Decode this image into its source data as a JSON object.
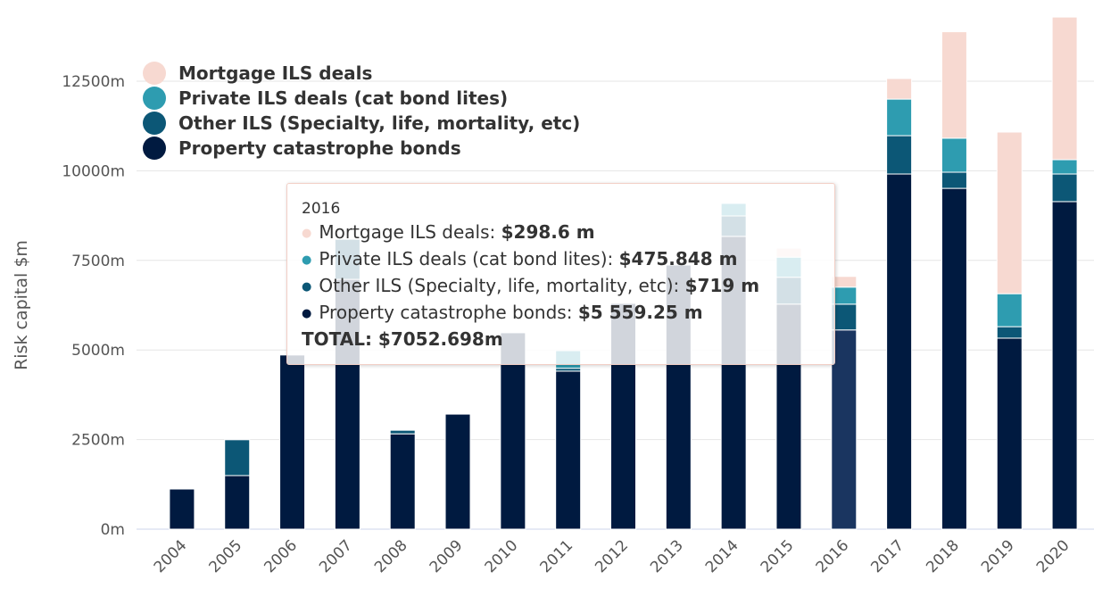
{
  "chart_data": {
    "type": "bar",
    "stacked": true,
    "ylabel": "Risk capital $m",
    "xlabel": "",
    "ylim": [
      0,
      14500
    ],
    "yticks": [
      "0m",
      "2500m",
      "5000m",
      "7500m",
      "10000m",
      "12500m"
    ],
    "ytick_values": [
      0,
      2500,
      5000,
      7500,
      10000,
      12500
    ],
    "grid": true,
    "legend_placement": "top-left",
    "categories": [
      "2004",
      "2005",
      "2006",
      "2007",
      "2008",
      "2009",
      "2010",
      "2011",
      "2012",
      "2013",
      "2014",
      "2015",
      "2016",
      "2017",
      "2018",
      "2019",
      "2020"
    ],
    "series": [
      {
        "name": "Property catastrophe bonds",
        "color": "#001a40",
        "values": [
          1120,
          1495,
          4860,
          6970,
          2660,
          3210,
          5480,
          4410,
          6300,
          7370,
          8170,
          6280,
          5559.25,
          9910,
          9510,
          5330,
          9140
        ]
      },
      {
        "name": "Other ILS (Specialty, life, mortality, etc)",
        "color": "#0c5776",
        "values": [
          0,
          1000,
          0,
          1120,
          100,
          0,
          0,
          80,
          0,
          0,
          570,
          750,
          719,
          1070,
          450,
          320,
          770
        ]
      },
      {
        "name": "Private ILS deals (cat bond lites)",
        "color": "#2e9cb0",
        "values": [
          0,
          0,
          0,
          0,
          0,
          0,
          0,
          490,
          0,
          0,
          350,
          560,
          475.848,
          1020,
          950,
          920,
          400
        ]
      },
      {
        "name": "Mortgage ILS deals",
        "color": "#f7d9d1",
        "values": [
          0,
          0,
          0,
          0,
          0,
          0,
          0,
          0,
          0,
          0,
          0,
          250,
          298.6,
          575,
          2970,
          4510,
          3980
        ]
      }
    ],
    "highlighted_category": "2016",
    "highlight_color": "#1a3560"
  },
  "legend": [
    {
      "label": "Mortgage ILS deals",
      "color": "#f7d9d1"
    },
    {
      "label": "Private ILS deals (cat bond lites)",
      "color": "#2e9cb0"
    },
    {
      "label": "Other ILS (Specialty, life, mortality, etc)",
      "color": "#0c5776"
    },
    {
      "label": "Property catastrophe bonds",
      "color": "#001a40"
    }
  ],
  "tooltip": {
    "year": "2016",
    "rows": [
      {
        "label": "Mortgage ILS deals: ",
        "value": "$298.6 m",
        "color": "#f7d9d1"
      },
      {
        "label": "Private ILS deals (cat bond lites): ",
        "value": "$475.848 m",
        "color": "#2e9cb0"
      },
      {
        "label": "Other ILS (Specialty, life, mortality, etc): ",
        "value": "$719 m",
        "color": "#0c5776"
      },
      {
        "label": "Property catastrophe bonds: ",
        "value": "$5 559.25 m",
        "color": "#001a40"
      }
    ],
    "total": "TOTAL: $7052.698m"
  }
}
